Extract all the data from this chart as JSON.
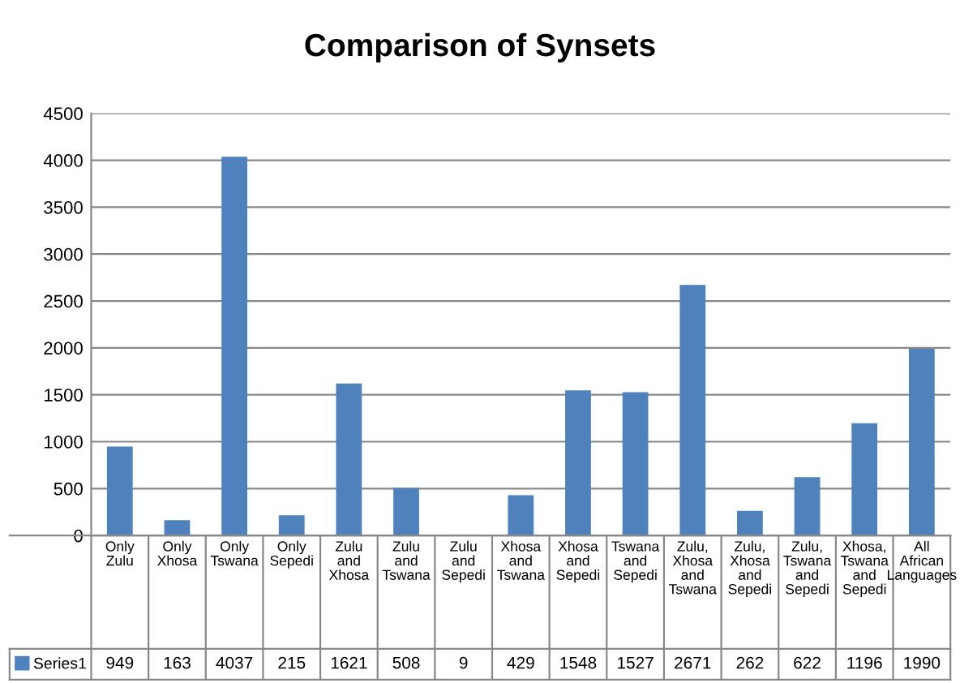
{
  "chart_data": {
    "type": "bar",
    "title": "Comparison of Synsets",
    "categories": [
      "Only Zulu",
      "Only Xhosa",
      "Only Tswana",
      "Only Sepedi",
      "Zulu and Xhosa",
      "Zulu and Tswana",
      "Zulu and Sepedi",
      "Xhosa and Tswana",
      "Xhosa and Sepedi",
      "Tswana and Sepedi",
      "Zulu, Xhosa and Tswana",
      "Zulu, Xhosa and Sepedi",
      "Zulu, Tswana and Sepedi",
      "Xhosa, Tswana and Sepedi",
      "All African Languages"
    ],
    "series": [
      {
        "name": "Series1",
        "color": "#4f81bd",
        "values": [
          949,
          163,
          4037,
          215,
          1621,
          508,
          9,
          429,
          1548,
          1527,
          2671,
          262,
          622,
          1196,
          1990
        ]
      }
    ],
    "ylim": [
      0,
      4500
    ],
    "yticks": [
      0,
      500,
      1000,
      1500,
      2000,
      2500,
      3000,
      3500,
      4000,
      4500
    ],
    "grid": "y",
    "data_labels": true,
    "legend": "bottom left"
  }
}
